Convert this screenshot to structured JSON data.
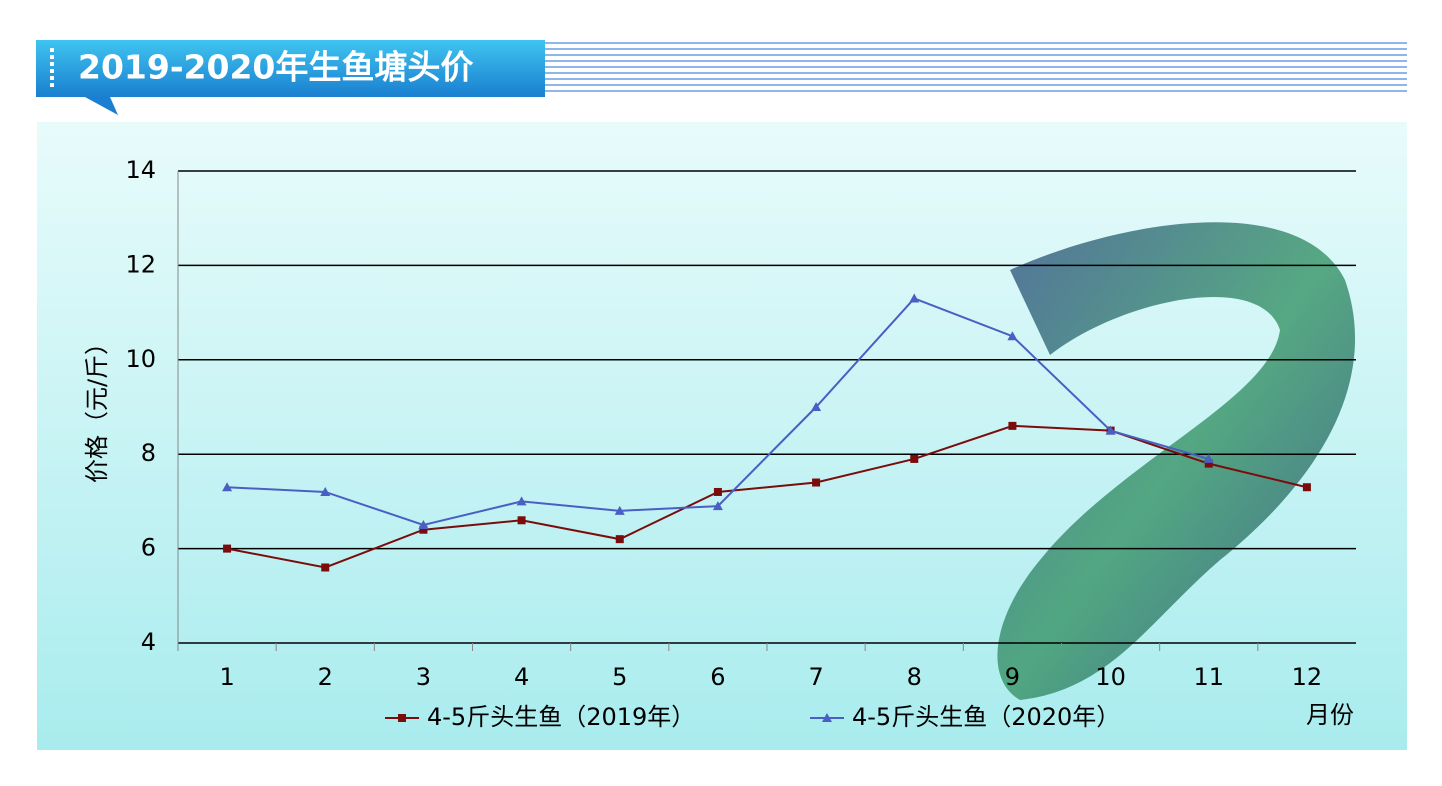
{
  "chart_data": {
    "type": "line",
    "title": "2019-2020年生鱼塘头价",
    "y_label": "价格（元/斤）",
    "x_label": "月份",
    "categories": [
      "1",
      "2",
      "3",
      "4",
      "5",
      "6",
      "7",
      "8",
      "9",
      "10",
      "11",
      "12"
    ],
    "series": [
      {
        "name": "4-5斤头生鱼（2019年）",
        "color": "#7b0c0c",
        "marker": "square",
        "values": [
          6.0,
          5.6,
          6.4,
          6.6,
          6.2,
          7.2,
          7.4,
          7.9,
          8.6,
          8.5,
          7.8,
          7.3
        ]
      },
      {
        "name": "4-5斤头生鱼（2020年）",
        "color": "#4a5fc4",
        "marker": "triangle",
        "values": [
          7.3,
          7.2,
          6.5,
          7.0,
          6.8,
          6.9,
          9.0,
          11.3,
          10.5,
          8.5,
          7.9,
          null
        ]
      }
    ],
    "ylim": [
      4,
      14
    ],
    "yticks": [
      4,
      6,
      8,
      10,
      12,
      14
    ],
    "grid": true
  }
}
